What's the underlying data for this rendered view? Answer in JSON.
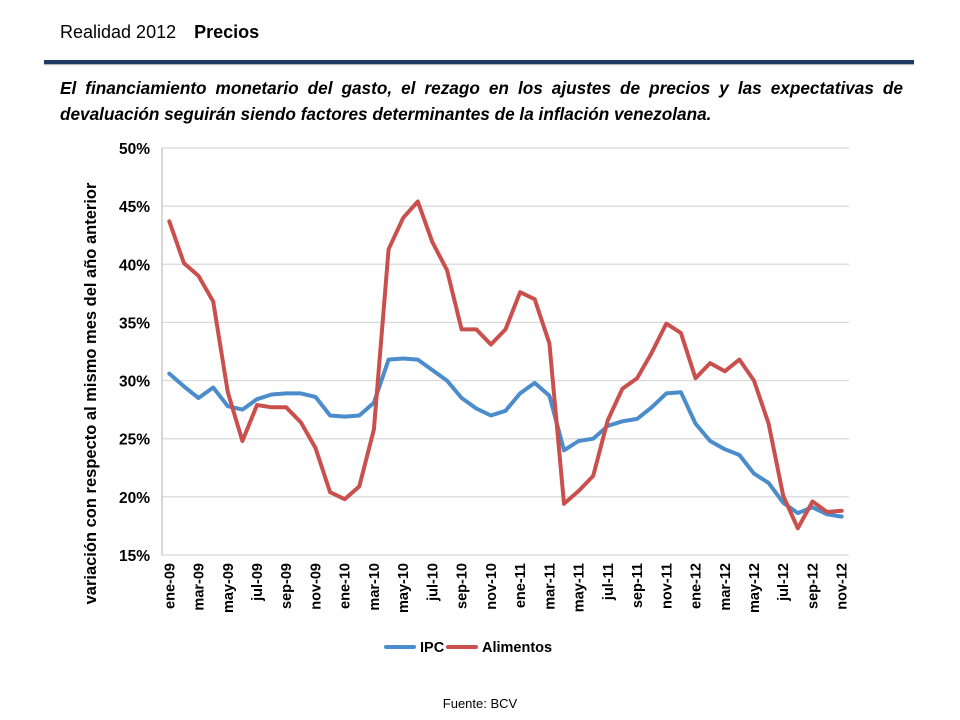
{
  "header": {
    "title": "Realidad 2012",
    "section": "Precios"
  },
  "subtitle": "El financiamiento monetario del gasto,  el rezago en los ajustes de precios  y las expectativas de devaluación seguirán siendo factores determinantes  de la inflación venezolana.",
  "source": "Fuente: BCV",
  "colors": {
    "ipc": "#4a8ccc",
    "alimentos": "#c9504d",
    "grid": "#d9d9d9",
    "rule": "#1f3864"
  },
  "chart_data": {
    "type": "line",
    "ylabel": "variación con respecto al mismo mes del año anterior",
    "xlabel": "",
    "ylim": [
      0.15,
      0.5
    ],
    "y_ticks": [
      "15%",
      "20%",
      "25%",
      "30%",
      "35%",
      "40%",
      "45%",
      "50%"
    ],
    "y_tick_values": [
      0.15,
      0.2,
      0.25,
      0.3,
      0.35,
      0.4,
      0.45,
      0.5
    ],
    "grid": true,
    "legend_position": "bottom",
    "x": [
      "ene-09",
      "feb-09",
      "mar-09",
      "abr-09",
      "may-09",
      "jun-09",
      "jul-09",
      "ago-09",
      "sep-09",
      "oct-09",
      "nov-09",
      "dic-09",
      "ene-10",
      "feb-10",
      "mar-10",
      "abr-10",
      "may-10",
      "jun-10",
      "jul-10",
      "ago-10",
      "sep-10",
      "oct-10",
      "nov-10",
      "dic-10",
      "ene-11",
      "feb-11",
      "mar-11",
      "abr-11",
      "may-11",
      "jun-11",
      "jul-11",
      "ago-11",
      "sep-11",
      "oct-11",
      "nov-11",
      "dic-11",
      "ene-12",
      "feb-12",
      "mar-12",
      "abr-12",
      "may-12",
      "jun-12",
      "jul-12",
      "ago-12",
      "sep-12",
      "oct-12",
      "nov-12"
    ],
    "x_tick_labels": [
      "ene-09",
      "mar-09",
      "may-09",
      "jul-09",
      "sep-09",
      "nov-09",
      "ene-10",
      "mar-10",
      "may-10",
      "jul-10",
      "sep-10",
      "nov-10",
      "ene-11",
      "mar-11",
      "may-11",
      "jul-11",
      "sep-11",
      "nov-11",
      "ene-12",
      "mar-12",
      "may-12",
      "jul-12",
      "sep-12",
      "nov-12"
    ],
    "series": [
      {
        "name": "IPC",
        "values": [
          0.306,
          0.295,
          0.285,
          0.294,
          0.278,
          0.275,
          0.284,
          0.288,
          0.289,
          0.289,
          0.286,
          0.27,
          0.269,
          0.27,
          0.281,
          0.318,
          0.319,
          0.318,
          0.309,
          0.3,
          0.285,
          0.276,
          0.27,
          0.274,
          0.289,
          0.298,
          0.287,
          0.24,
          0.248,
          0.25,
          0.261,
          0.265,
          0.267,
          0.277,
          0.289,
          0.29,
          0.263,
          0.248,
          0.241,
          0.236,
          0.22,
          0.212,
          0.195,
          0.186,
          0.191,
          0.185,
          0.183
        ]
      },
      {
        "name": "Alimentos",
        "values": [
          0.437,
          0.401,
          0.39,
          0.368,
          0.29,
          0.248,
          0.279,
          0.277,
          0.277,
          0.264,
          0.242,
          0.204,
          0.198,
          0.209,
          0.258,
          0.413,
          0.44,
          0.454,
          0.419,
          0.395,
          0.344,
          0.344,
          0.331,
          0.344,
          0.376,
          0.37,
          0.332,
          0.194,
          0.205,
          0.218,
          0.266,
          0.293,
          0.302,
          0.324,
          0.349,
          0.341,
          0.302,
          0.315,
          0.308,
          0.318,
          0.3,
          0.263,
          0.201,
          0.173,
          0.196,
          0.187,
          0.188
        ]
      }
    ]
  }
}
